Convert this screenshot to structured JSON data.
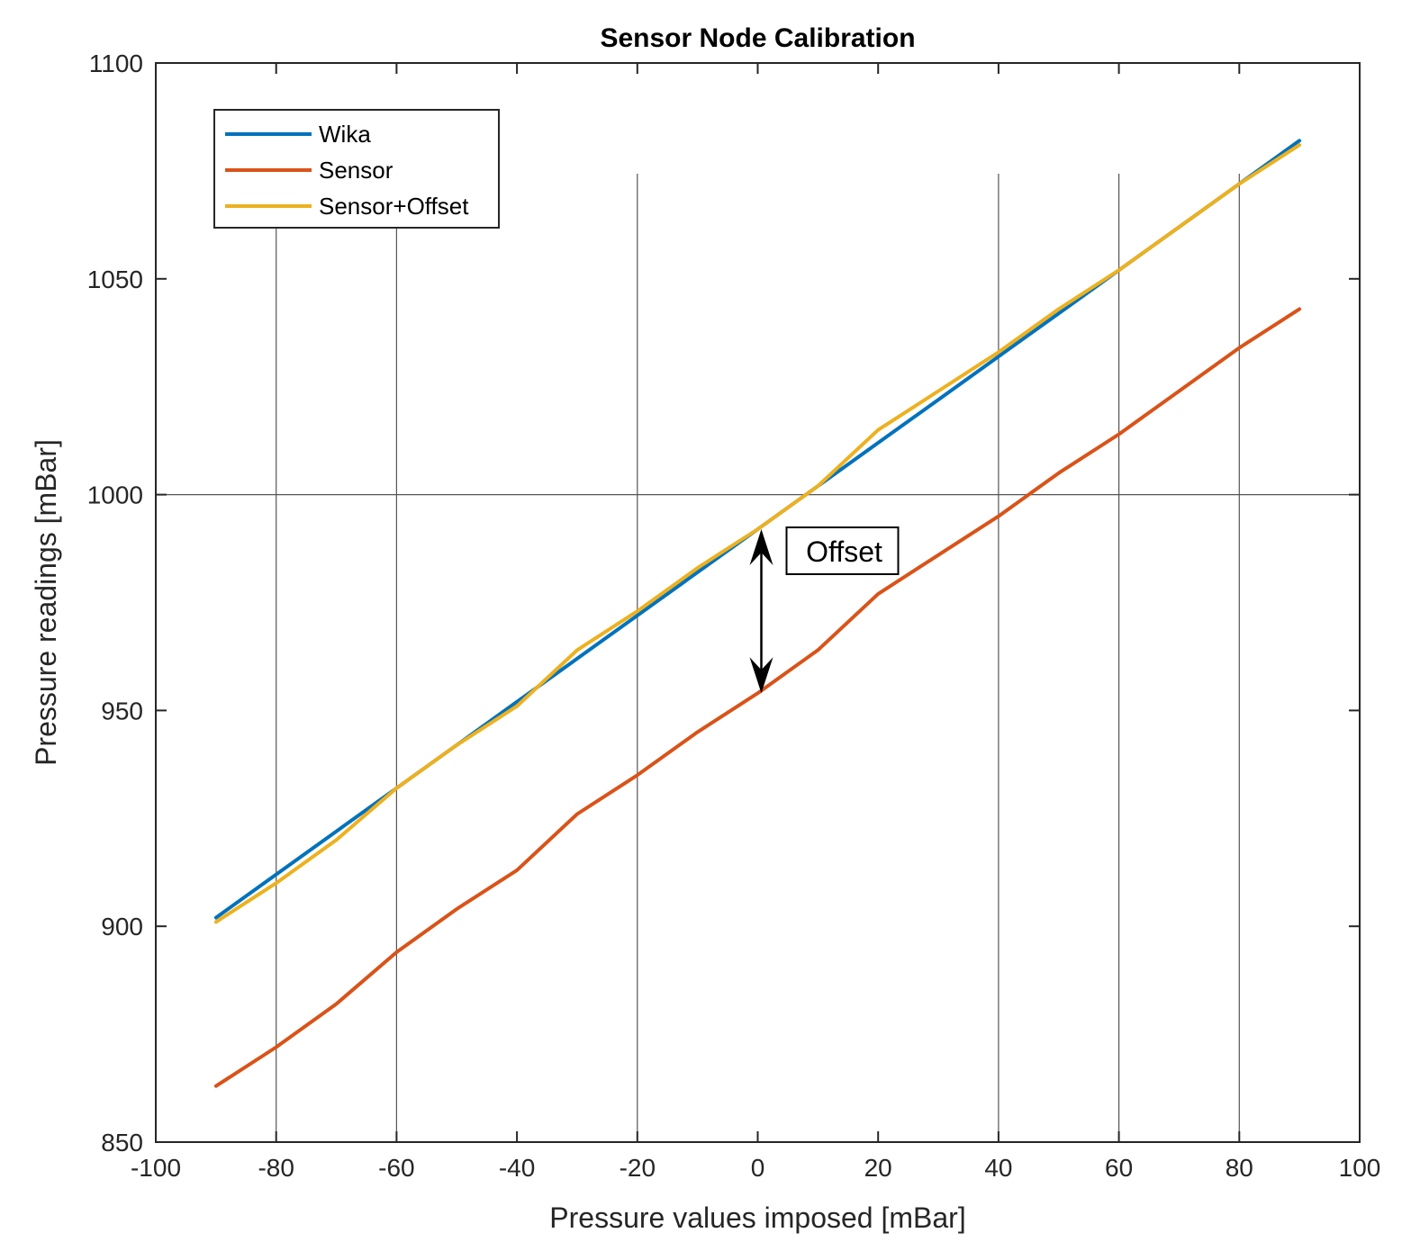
{
  "chart_data": {
    "type": "line",
    "title": "Sensor Node Calibration",
    "xlabel": "Pressure values imposed [mBar]",
    "ylabel": "Pressure readings [mBar]",
    "xlim": [
      -100,
      100
    ],
    "ylim": [
      850,
      1100
    ],
    "xticks": [
      -100,
      -80,
      -60,
      -40,
      -20,
      0,
      20,
      40,
      60,
      80,
      100
    ],
    "yticks": [
      850,
      900,
      950,
      1000,
      1050,
      1100
    ],
    "xtick_labels": [
      "-100",
      "-80",
      "-60",
      "-40",
      "-20",
      "0",
      "20",
      "40",
      "60",
      "80",
      "100"
    ],
    "ytick_labels": [
      "850",
      "900",
      "950",
      "1000",
      "1050",
      "1100"
    ],
    "grid": "partial",
    "vertical_reference_lines_x": [
      -80,
      -60,
      -20,
      40,
      60,
      80
    ],
    "horizontal_reference_lines_y": [
      1000
    ],
    "legend_position": "top-left",
    "x": [
      -90,
      -80,
      -70,
      -60,
      -50,
      -40,
      -30,
      -20,
      -10,
      0,
      10,
      20,
      30,
      40,
      50,
      60,
      70,
      80,
      90
    ],
    "series": [
      {
        "name": "Wika",
        "color": "#0072BD",
        "values": [
          902,
          912,
          922,
          932,
          942,
          952,
          962,
          972,
          982,
          992,
          1002,
          1012,
          1022,
          1032,
          1042,
          1052,
          1062,
          1072,
          1082
        ]
      },
      {
        "name": "Sensor",
        "color": "#D95319",
        "values": [
          863,
          872,
          882,
          894,
          904,
          913,
          926,
          935,
          945,
          954,
          964,
          977,
          986,
          995,
          1005,
          1014,
          1024,
          1034,
          1043
        ]
      },
      {
        "name": "Sensor+Offset",
        "color": "#EDB120",
        "values": [
          901,
          910,
          920,
          932,
          942,
          951,
          964,
          973,
          983,
          992,
          1002,
          1015,
          1024,
          1033,
          1043,
          1052,
          1062,
          1072,
          1081
        ]
      }
    ],
    "annotations": [
      {
        "text": "Offset",
        "arrow": {
          "x": 0,
          "y_from": 992,
          "y_to": 954,
          "direction": "double"
        }
      }
    ]
  }
}
